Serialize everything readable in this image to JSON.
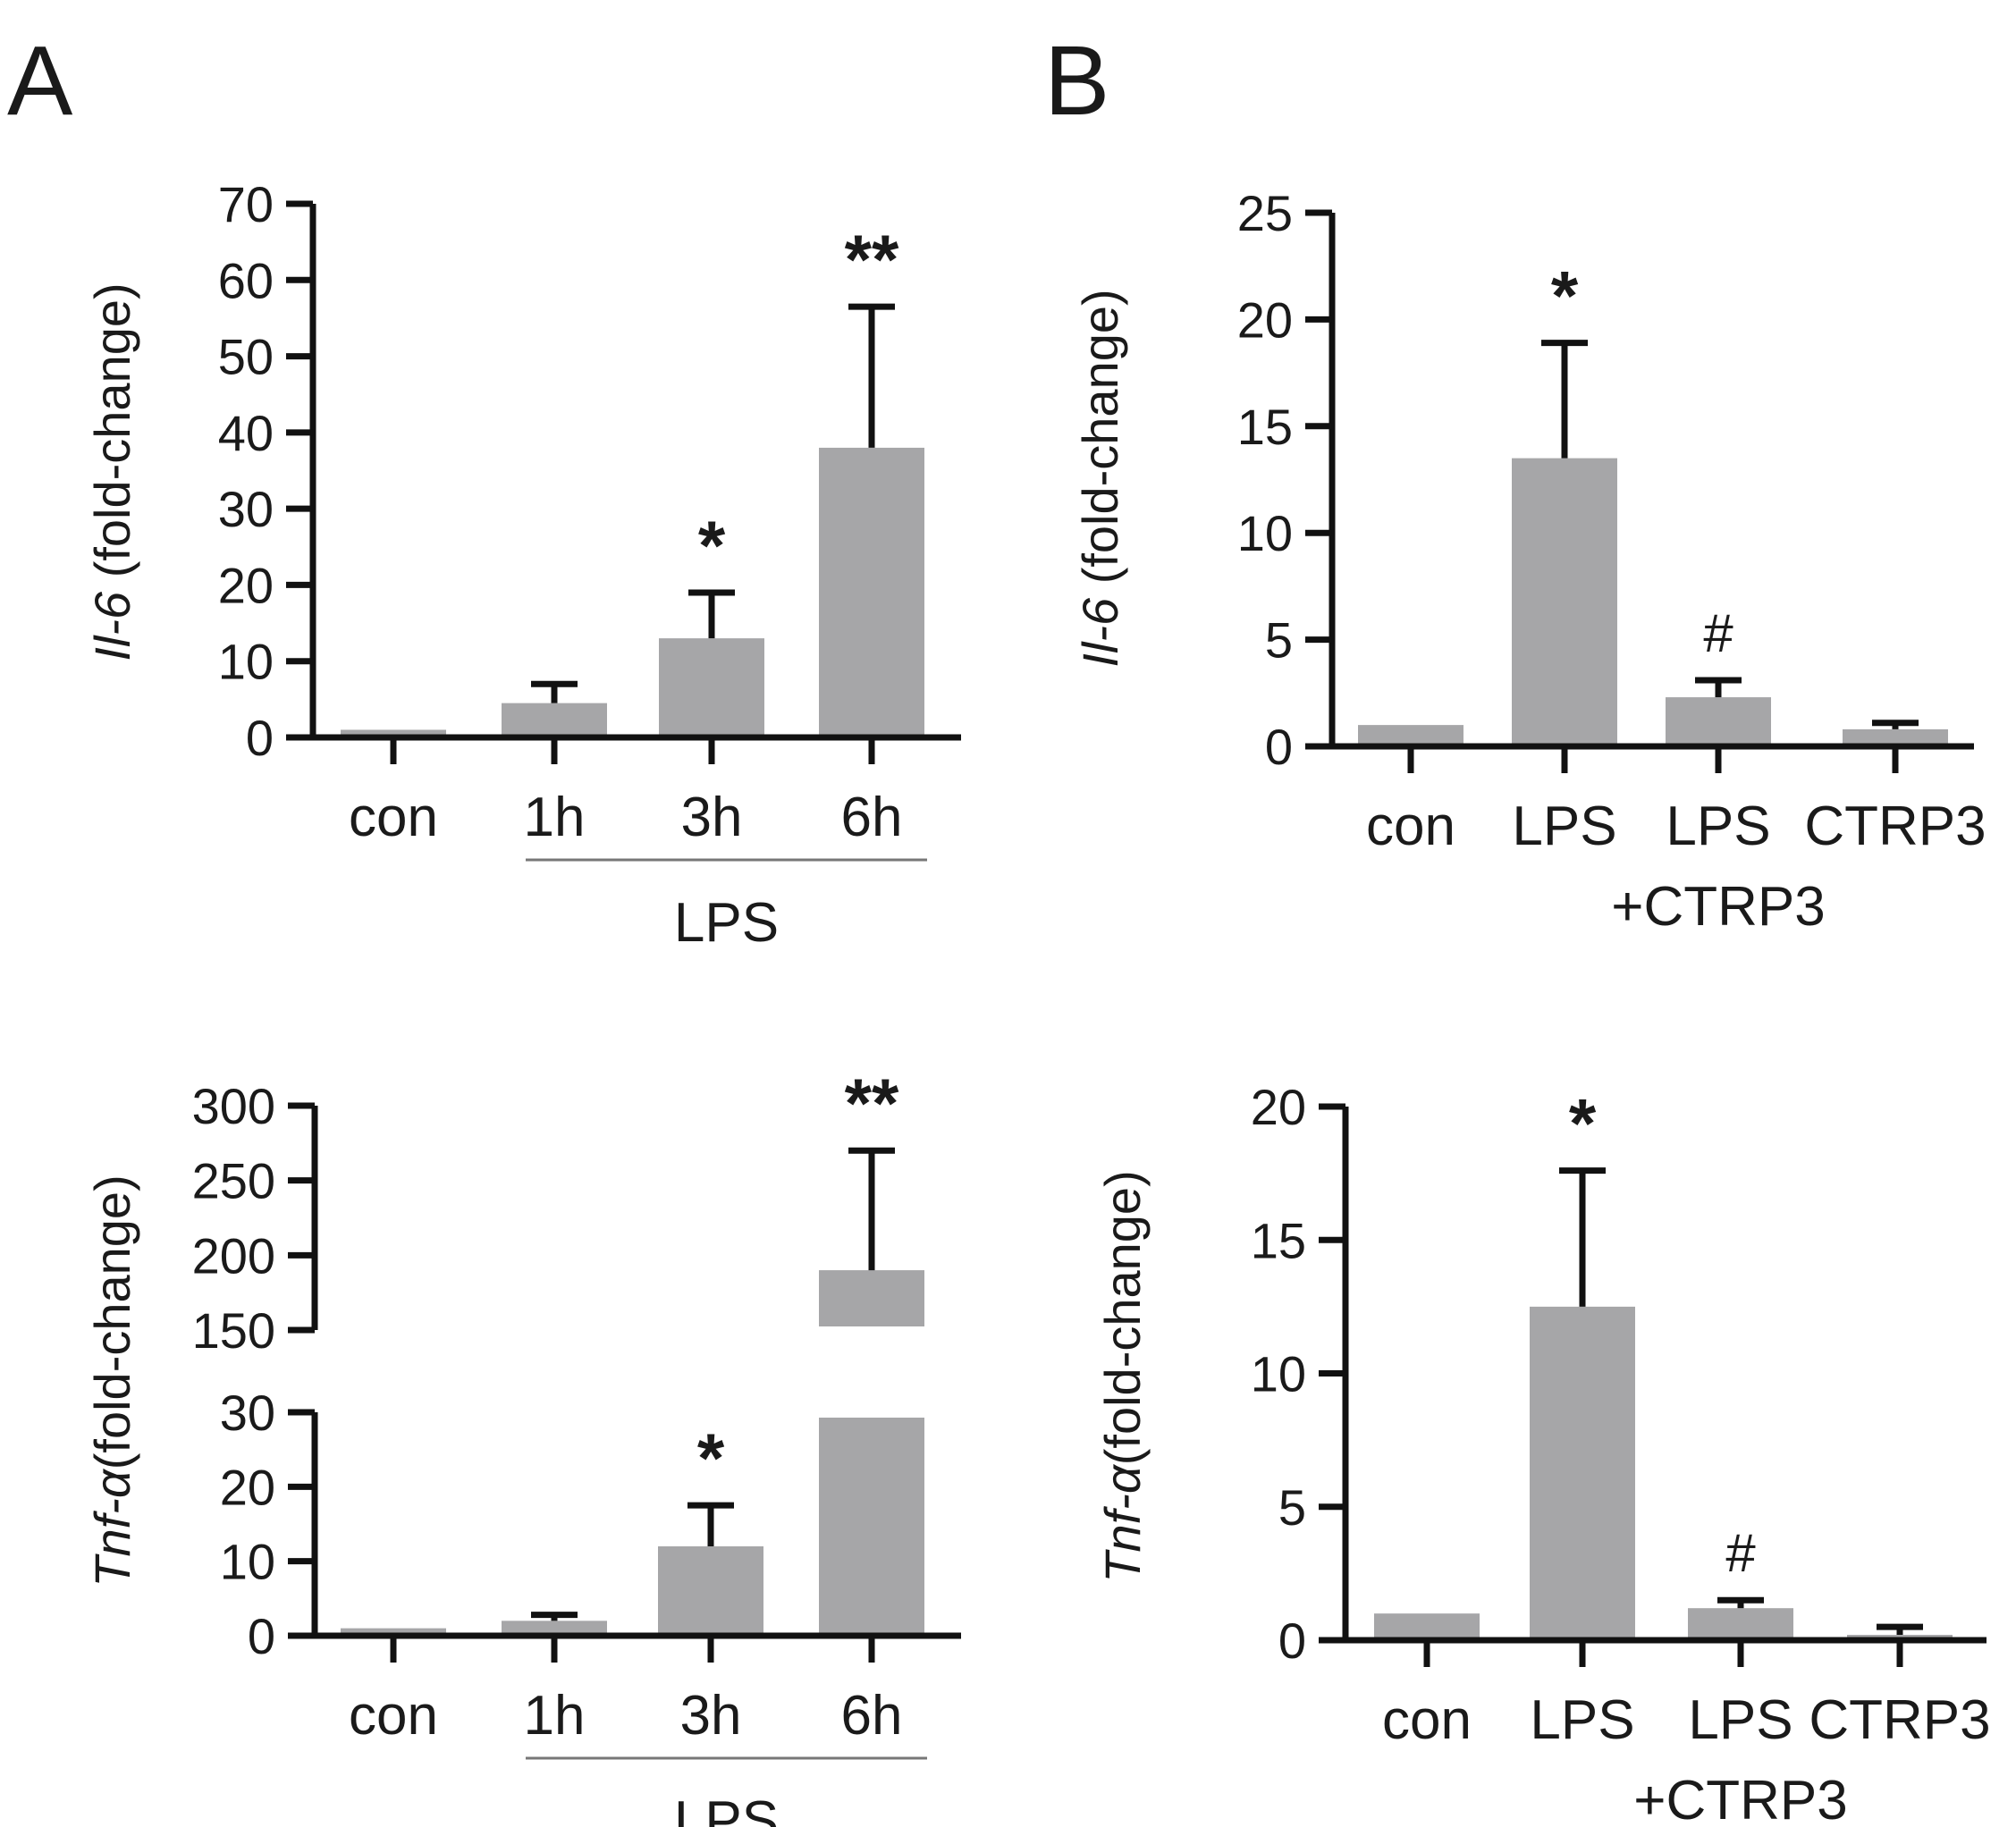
{
  "panels": [
    {
      "letter": "A"
    },
    {
      "letter": "B"
    }
  ],
  "chart_data": [
    {
      "id": "A-top",
      "panel": "A",
      "type": "bar",
      "ylabel_gene": "Il-6",
      "ylabel_unit": " (fold-change)",
      "ylim": [
        0,
        70
      ],
      "yticks": [
        0,
        10,
        20,
        30,
        40,
        50,
        60,
        70
      ],
      "categories": [
        "con",
        "1h",
        "3h",
        "6h"
      ],
      "values": [
        1,
        4.5,
        13,
        38
      ],
      "errors": [
        0,
        2.5,
        6,
        18.5
      ],
      "significance": [
        "",
        "",
        "*",
        "**"
      ],
      "group_label": "LPS",
      "group_from": 1,
      "group_to": 3
    },
    {
      "id": "B-top",
      "panel": "B",
      "type": "bar",
      "ylabel_gene": "Il-6",
      "ylabel_unit": " (fold-change)",
      "ylim": [
        0,
        25
      ],
      "yticks": [
        0,
        5,
        10,
        15,
        20,
        25
      ],
      "categories": [
        [
          "con"
        ],
        [
          "LPS"
        ],
        [
          "LPS",
          "+CTRP3"
        ],
        [
          "CTRP3"
        ]
      ],
      "values": [
        1,
        13.5,
        2.3,
        0.8
      ],
      "errors": [
        0,
        5.4,
        0.8,
        0.3
      ],
      "significance": [
        "",
        "*",
        "#",
        ""
      ]
    },
    {
      "id": "A-bottom",
      "panel": "A",
      "type": "bar",
      "broken_axis": true,
      "ylabel_gene": "Tnf-α",
      "ylabel_unit": "(fold-change)",
      "segments": [
        {
          "ylim": [
            0,
            30
          ],
          "yticks": [
            0,
            10,
            20,
            30
          ]
        },
        {
          "ylim": [
            150,
            300
          ],
          "yticks": [
            150,
            200,
            250,
            300
          ]
        }
      ],
      "categories": [
        "con",
        "1h",
        "3h",
        "6h"
      ],
      "values": [
        1,
        2,
        12,
        190
      ],
      "errors": [
        0,
        0.8,
        5.5,
        80
      ],
      "significance": [
        "",
        "",
        "*",
        "**"
      ],
      "group_label": "LPS",
      "group_from": 1,
      "group_to": 3
    },
    {
      "id": "B-bottom",
      "panel": "B",
      "type": "bar",
      "ylabel_gene": "Tnf-α",
      "ylabel_unit": "(fold-change)",
      "ylim": [
        0,
        20
      ],
      "yticks": [
        0,
        5,
        10,
        15,
        20
      ],
      "categories": [
        [
          "con"
        ],
        [
          "LPS"
        ],
        [
          "LPS",
          "+CTRP3"
        ],
        [
          "CTRP3"
        ]
      ],
      "values": [
        1,
        12.5,
        1.2,
        0.2
      ],
      "errors": [
        0,
        5.1,
        0.3,
        0.3
      ],
      "significance": [
        "",
        "*",
        "#",
        ""
      ]
    }
  ],
  "colors": {
    "bar": "#a6a6a8",
    "axis": "#111111",
    "group_line": "#777777"
  }
}
